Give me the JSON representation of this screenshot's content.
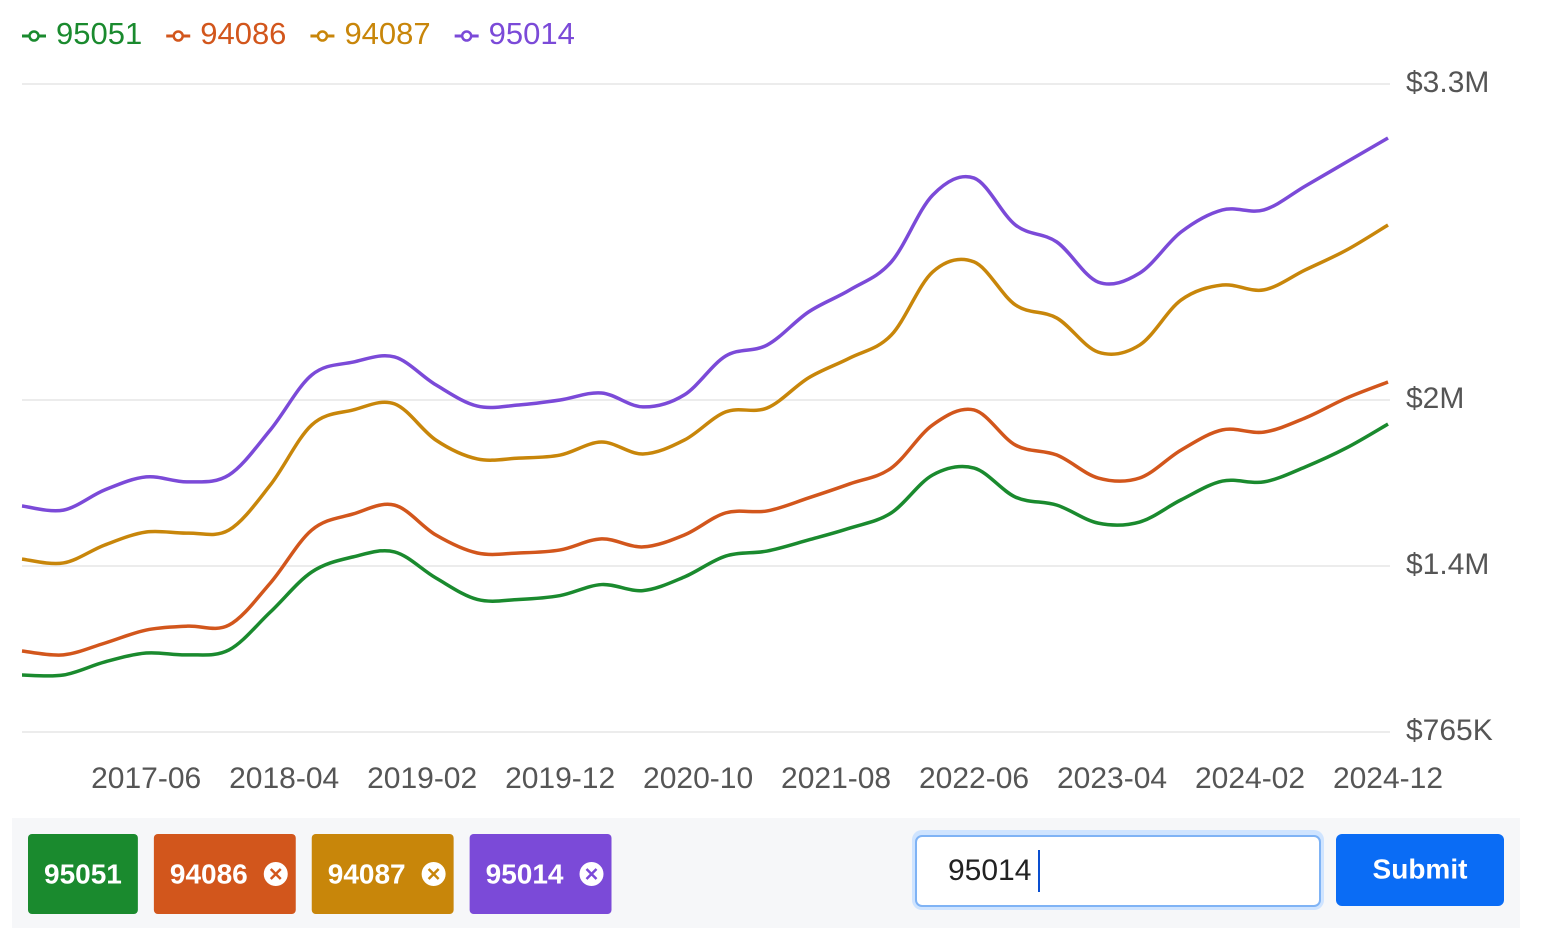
{
  "chart_data": {
    "type": "line",
    "x": [
      "2016-09",
      "2016-12",
      "2017-03",
      "2017-06",
      "2017-09",
      "2017-12",
      "2018-03",
      "2018-06",
      "2018-09",
      "2018-12",
      "2019-03",
      "2019-06",
      "2019-09",
      "2019-12",
      "2020-03",
      "2020-06",
      "2020-09",
      "2020-12",
      "2021-03",
      "2021-06",
      "2021-09",
      "2021-12",
      "2022-03",
      "2022-06",
      "2022-09",
      "2022-12",
      "2023-03",
      "2023-06",
      "2023-09",
      "2023-12",
      "2024-03",
      "2024-06",
      "2024-09",
      "2024-12"
    ],
    "series": [
      {
        "name": "95051",
        "color": "#1a8a2e",
        "values": [
          983000,
          983000,
          1033000,
          1067000,
          1060000,
          1079000,
          1224000,
          1377000,
          1433000,
          1451000,
          1354000,
          1272000,
          1272000,
          1287000,
          1329000,
          1306000,
          1358000,
          1436000,
          1454000,
          1494000,
          1537000,
          1592000,
          1729000,
          1754000,
          1649000,
          1620000,
          1555000,
          1559000,
          1639000,
          1707000,
          1704000,
          1758000,
          1827000,
          1913000
        ]
      },
      {
        "name": "94086",
        "color": "#d2561c",
        "values": [
          1075000,
          1060000,
          1105000,
          1155000,
          1170000,
          1174000,
          1335000,
          1530000,
          1588000,
          1620000,
          1512000,
          1447000,
          1447000,
          1458000,
          1498000,
          1469000,
          1512000,
          1592000,
          1599000,
          1646000,
          1697000,
          1754000,
          1910000,
          1964000,
          1837000,
          1801000,
          1718000,
          1718000,
          1819000,
          1892000,
          1884000,
          1935000,
          2008000,
          2074000
        ]
      },
      {
        "name": "94087",
        "color": "#c8860a",
        "values": [
          1425000,
          1411000,
          1476000,
          1523000,
          1519000,
          1530000,
          1693000,
          1910000,
          1964000,
          1986000,
          1855000,
          1787000,
          1790000,
          1801000,
          1848000,
          1805000,
          1855000,
          1957000,
          1971000,
          2091000,
          2173000,
          2267000,
          2527000,
          2568000,
          2391000,
          2337000,
          2197000,
          2226000,
          2411000,
          2473000,
          2453000,
          2535000,
          2617000,
          2720000
        ]
      },
      {
        "name": "95014",
        "color": "#7b4ad8",
        "values": [
          1617000,
          1602000,
          1675000,
          1722000,
          1704000,
          1729000,
          1892000,
          2103000,
          2156000,
          2177000,
          2062000,
          1978000,
          1982000,
          2000000,
          2029000,
          1975000,
          2021000,
          2181000,
          2226000,
          2362000,
          2453000,
          2568000,
          2843000,
          2913000,
          2720000,
          2650000,
          2485000,
          2522000,
          2691000,
          2782000,
          2782000,
          2880000,
          2979000,
          3078000
        ]
      }
    ],
    "xticks": [
      "2017-06",
      "2018-04",
      "2019-02",
      "2019-12",
      "2020-10",
      "2021-08",
      "2022-06",
      "2023-04",
      "2024-02",
      "2024-12"
    ],
    "ylim": [
      765000,
      3300000
    ],
    "yticks": [
      {
        "value": 765000,
        "label": "$765K"
      },
      {
        "value": 1400000,
        "label": "$1.4M"
      },
      {
        "value": 2000000,
        "label": "$2M"
      },
      {
        "value": 3300000,
        "label": "$3.3M"
      }
    ],
    "grid": true,
    "legend": "top-left"
  },
  "ui": {
    "input_value": "95014",
    "button": "Submit"
  }
}
